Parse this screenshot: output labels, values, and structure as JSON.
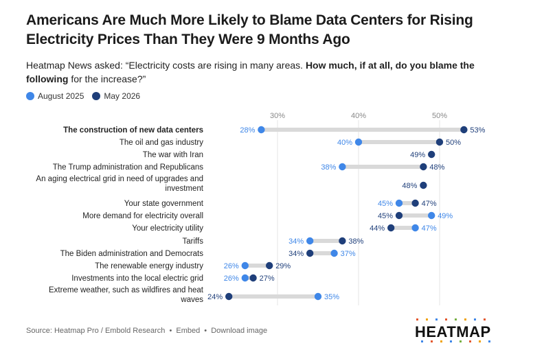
{
  "title": "Americans Are Much More Likely to Blame Data Centers for Rising Electricity Prices Than They Were 9 Months Ago",
  "subtitle_plain": "Heatmap News asked: “Electricity costs are rising in many areas. ",
  "subtitle_bold": "How much, if at all, do you blame the following",
  "subtitle_end": " for the increase?”",
  "legend": [
    {
      "label": "August 2025",
      "color": "#3f87e8"
    },
    {
      "label": "May 2026",
      "color": "#1f3f7a"
    }
  ],
  "footer": {
    "source": "Source: Heatmap Pro / Embold Research",
    "embed": "Embed",
    "download": "Download image"
  },
  "logo_text": "HEATMAP",
  "chart_data": {
    "type": "dot",
    "x_ticks": [
      "30%",
      "40%",
      "50%"
    ],
    "xlim": [
      20,
      55
    ],
    "series": [
      {
        "name": "August 2025",
        "color": "#3f87e8"
      },
      {
        "name": "May 2026",
        "color": "#1f3f7a"
      }
    ],
    "categories": [
      {
        "label": [
          "The construction of new data centers"
        ],
        "aug": 28,
        "may": 53,
        "bold": true
      },
      {
        "label": [
          "The oil and gas industry"
        ],
        "aug": 40,
        "may": 50
      },
      {
        "label": [
          "The war with Iran"
        ],
        "aug": null,
        "may": 49
      },
      {
        "label": [
          "The Trump administration and Republicans"
        ],
        "aug": 38,
        "may": 48
      },
      {
        "label": [
          "An aging electrical grid in need of upgrades and",
          "investment"
        ],
        "aug": null,
        "may": 48
      },
      {
        "label": [
          "Your state government"
        ],
        "aug": 45,
        "may": 47
      },
      {
        "label": [
          "More demand for electricity overall"
        ],
        "aug": 49,
        "may": 45
      },
      {
        "label": [
          "Your electricity utility"
        ],
        "aug": 47,
        "may": 44
      },
      {
        "label": [
          "Tariffs"
        ],
        "aug": 34,
        "may": 38
      },
      {
        "label": [
          "The Biden administration and Democrats"
        ],
        "aug": 37,
        "may": 34
      },
      {
        "label": [
          "The renewable energy industry"
        ],
        "aug": 26,
        "may": 29
      },
      {
        "label": [
          "Investments into the local electric grid"
        ],
        "aug": 26,
        "may": 27
      },
      {
        "label": [
          "Extreme weather, such as wildfires and heat",
          "waves"
        ],
        "aug": 35,
        "may": 24
      }
    ]
  }
}
